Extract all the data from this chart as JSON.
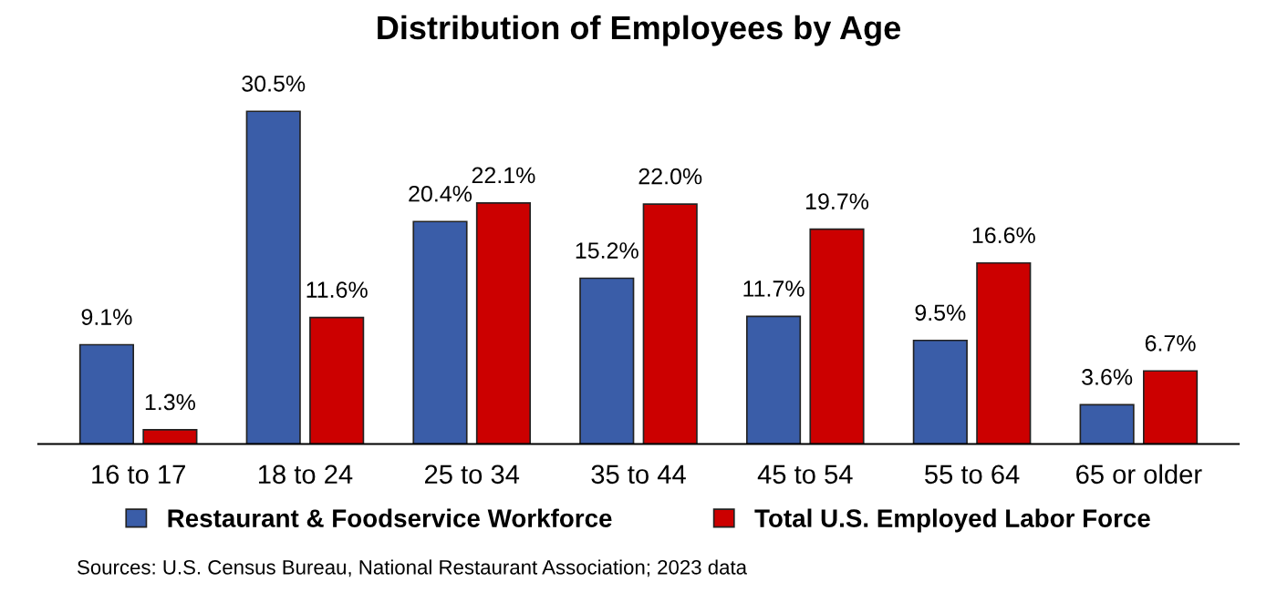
{
  "chart_data": {
    "type": "bar",
    "title": "Distribution of Employees by Age",
    "categories": [
      "16 to 17",
      "18 to 24",
      "25 to 34",
      "35 to 44",
      "45 to 54",
      "55 to 64",
      "65 or older"
    ],
    "series": [
      {
        "name": "Restaurant & Foodservice Workforce",
        "color": "#3a5da8",
        "values": [
          9.1,
          30.5,
          20.4,
          15.2,
          11.7,
          9.5,
          3.6
        ],
        "value_labels": [
          "9.1%",
          "30.5%",
          "20.4%",
          "15.2%",
          "11.7%",
          "9.5%",
          "3.6%"
        ]
      },
      {
        "name": "Total U.S. Employed Labor Force",
        "color": "#cc0000",
        "values": [
          1.3,
          11.6,
          22.1,
          22.0,
          19.7,
          16.6,
          6.7
        ],
        "value_labels": [
          "1.3%",
          "11.6%",
          "22.1%",
          "22.0%",
          "19.7%",
          "16.6%",
          "6.7%"
        ]
      }
    ],
    "legend": "bottom",
    "grid": false,
    "annotations": [
      "Sources: U.S. Census Bureau, National Restaurant Association; 2023 data"
    ]
  }
}
